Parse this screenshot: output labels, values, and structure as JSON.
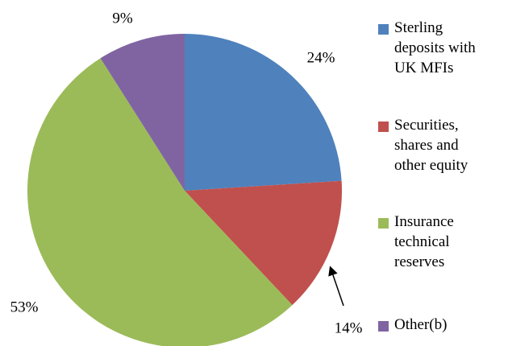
{
  "chart_data": {
    "type": "pie",
    "categories": [
      "Sterling deposits with UK MFIs",
      "Securities, shares and other equity",
      "Insurance technical reserves",
      "Other(b)"
    ],
    "values": [
      24,
      14,
      53,
      9
    ],
    "value_labels": [
      "24%",
      "14%",
      "53%",
      "9%"
    ],
    "colors": [
      "#4f81bd",
      "#c0504d",
      "#9bbb59",
      "#8064a2"
    ],
    "legend": "right"
  }
}
